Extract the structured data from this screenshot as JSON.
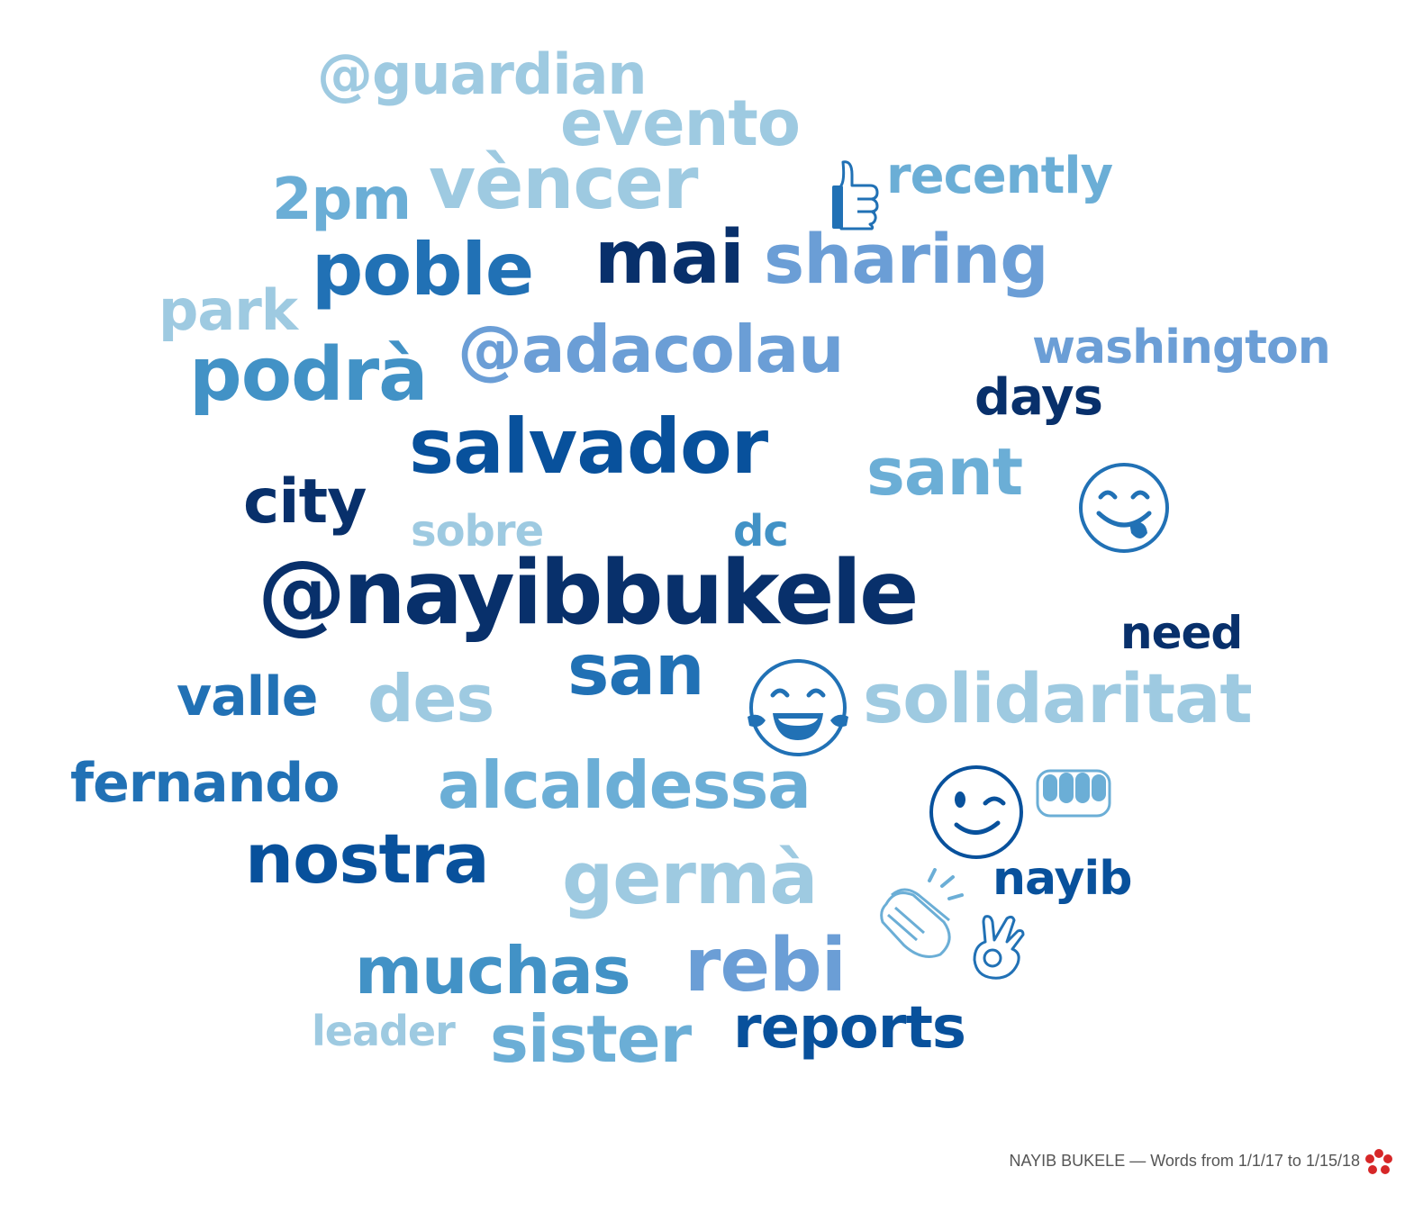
{
  "cloud": {
    "words": [
      {
        "text": "@guardian",
        "color": "#9ecae1"
      },
      {
        "text": "evento",
        "color": "#9ecae1"
      },
      {
        "text": "2pm",
        "color": "#6baed6"
      },
      {
        "text": "vèncer",
        "color": "#9ecae1"
      },
      {
        "text": "recently",
        "color": "#6baed6"
      },
      {
        "text": "poble",
        "color": "#2171b5"
      },
      {
        "text": "mai",
        "color": "#08306b"
      },
      {
        "text": "sharing",
        "color": "#6b9ed6"
      },
      {
        "text": "park",
        "color": "#9ecae1"
      },
      {
        "text": "podrà",
        "color": "#4292c6"
      },
      {
        "text": "@adacolau",
        "color": "#6b9ed6"
      },
      {
        "text": "washington",
        "color": "#6b9ed6"
      },
      {
        "text": "days",
        "color": "#08306b"
      },
      {
        "text": "salvador",
        "color": "#08519c"
      },
      {
        "text": "sant",
        "color": "#6baed6"
      },
      {
        "text": "city",
        "color": "#08306b"
      },
      {
        "text": "sobre",
        "color": "#9ecae1"
      },
      {
        "text": "dc",
        "color": "#4292c6"
      },
      {
        "text": "@nayibbukele",
        "color": "#08306b"
      },
      {
        "text": "need",
        "color": "#08306b"
      },
      {
        "text": "valle",
        "color": "#2171b5"
      },
      {
        "text": "des",
        "color": "#9ecae1"
      },
      {
        "text": "san",
        "color": "#2171b5"
      },
      {
        "text": "solidaritat",
        "color": "#9ecae1"
      },
      {
        "text": "fernando",
        "color": "#2171b5"
      },
      {
        "text": "alcaldessa",
        "color": "#6baed6"
      },
      {
        "text": "nostra",
        "color": "#08519c"
      },
      {
        "text": "germà",
        "color": "#9ecae1"
      },
      {
        "text": "nayib",
        "color": "#08519c"
      },
      {
        "text": "muchas",
        "color": "#4292c6"
      },
      {
        "text": "rebi",
        "color": "#6b9ed6"
      },
      {
        "text": "leader",
        "color": "#9ecae1"
      },
      {
        "text": "sister",
        "color": "#6baed6"
      },
      {
        "text": "reports",
        "color": "#08519c"
      }
    ],
    "emojis": [
      {
        "icon": "thumbs-up-icon",
        "color": "#2171b5"
      },
      {
        "icon": "face-savoring-food-icon",
        "color": "#2171b5"
      },
      {
        "icon": "face-with-tears-of-joy-icon",
        "color": "#2171b5"
      },
      {
        "icon": "winking-face-icon",
        "color": "#08519c"
      },
      {
        "icon": "oncoming-fist-icon",
        "color": "#6baed6"
      },
      {
        "icon": "clapping-hands-icon",
        "color": "#6baed6"
      },
      {
        "icon": "ok-hand-icon",
        "color": "#2171b5"
      }
    ]
  },
  "caption": "NAYIB BUKELE — Words from 1/1/17 to 1/15/18",
  "logo": {
    "icon": "flower-logo-icon",
    "color": "#d62728"
  }
}
